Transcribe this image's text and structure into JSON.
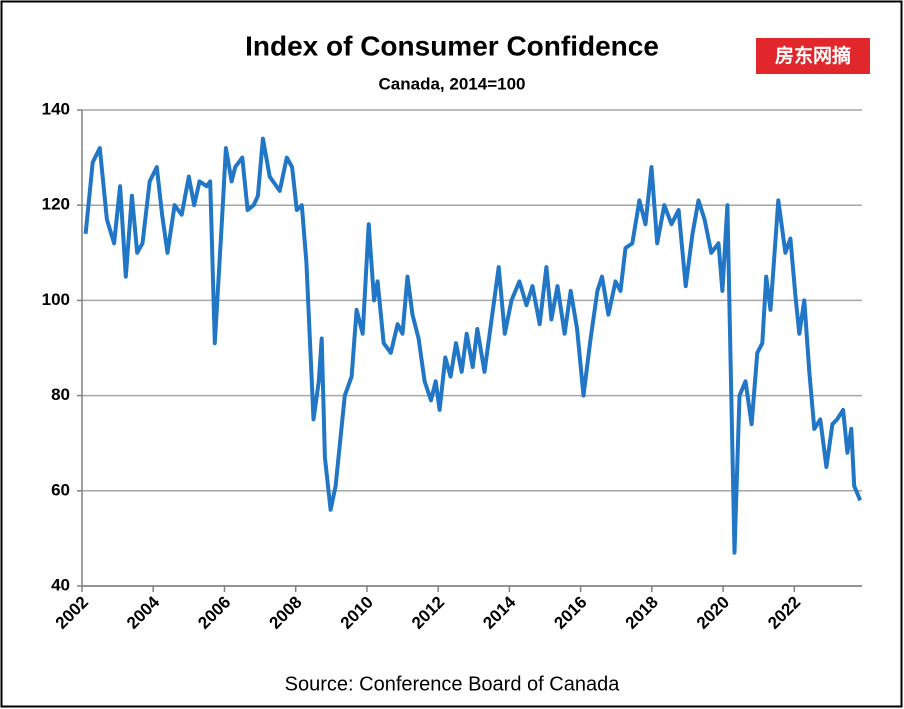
{
  "chart_data": {
    "type": "line",
    "title": "Index of Consumer Confidence",
    "subtitle": "Canada, 2014=100",
    "source": "Source: Conference Board of Canada",
    "watermark": "房东网摘",
    "color": "#2176c5",
    "grid": true,
    "xlim": [
      2002,
      2023.9
    ],
    "xticks": [
      2002,
      2004,
      2006,
      2008,
      2010,
      2012,
      2014,
      2016,
      2018,
      2020,
      2022
    ],
    "ylim": [
      40,
      140
    ],
    "yticks": [
      40,
      60,
      80,
      100,
      120,
      140
    ],
    "x": [
      2002.1,
      2002.3,
      2002.5,
      2002.7,
      2002.9,
      2003.07,
      2003.23,
      2003.4,
      2003.55,
      2003.7,
      2003.9,
      2004.1,
      2004.25,
      2004.4,
      2004.6,
      2004.8,
      2005.0,
      2005.15,
      2005.3,
      2005.5,
      2005.6,
      2005.73,
      2005.93,
      2006.04,
      2006.2,
      2006.3,
      2006.5,
      2006.65,
      2006.82,
      2006.94,
      2007.08,
      2007.27,
      2007.55,
      2007.75,
      2007.9,
      2008.03,
      2008.17,
      2008.3,
      2008.5,
      2008.65,
      2008.73,
      2008.82,
      2008.98,
      2009.12,
      2009.38,
      2009.57,
      2009.71,
      2009.88,
      2010.05,
      2010.2,
      2010.3,
      2010.47,
      2010.67,
      2010.86,
      2011.0,
      2011.14,
      2011.28,
      2011.45,
      2011.62,
      2011.8,
      2011.93,
      2012.04,
      2012.2,
      2012.35,
      2012.5,
      2012.66,
      2012.8,
      2012.97,
      2013.1,
      2013.3,
      2013.5,
      2013.7,
      2013.87,
      2014.06,
      2014.28,
      2014.48,
      2014.65,
      2014.85,
      2015.04,
      2015.18,
      2015.35,
      2015.55,
      2015.72,
      2015.9,
      2016.08,
      2016.28,
      2016.47,
      2016.6,
      2016.78,
      2016.98,
      2017.12,
      2017.26,
      2017.45,
      2017.65,
      2017.82,
      2017.99,
      2018.15,
      2018.35,
      2018.55,
      2018.75,
      2018.95,
      2019.14,
      2019.31,
      2019.48,
      2019.67,
      2019.87,
      2019.98,
      2020.12,
      2020.32,
      2020.46,
      2020.63,
      2020.8,
      2020.96,
      2021.1,
      2021.21,
      2021.33,
      2021.55,
      2021.75,
      2021.89,
      2022.03,
      2022.14,
      2022.28,
      2022.42,
      2022.56,
      2022.73,
      2022.9,
      2023.07,
      2023.2,
      2023.37,
      2023.49,
      2023.6,
      2023.68,
      2023.85
    ],
    "values": [
      114,
      129,
      132,
      117,
      112,
      124,
      105,
      122,
      110,
      112,
      125,
      128,
      118,
      110,
      120,
      118,
      126,
      120,
      125,
      124,
      125,
      91,
      117,
      132,
      125,
      128,
      130,
      119,
      120,
      122,
      134,
      126,
      123,
      130,
      128,
      119,
      120,
      108,
      75,
      83,
      92,
      67,
      56,
      61,
      80,
      84,
      98,
      93,
      116,
      100,
      104,
      91,
      89,
      95,
      93,
      105,
      97,
      92,
      83,
      79,
      83,
      77,
      88,
      84,
      91,
      85,
      93,
      86,
      94,
      85,
      96,
      107,
      93,
      100,
      104,
      99,
      103,
      95,
      107,
      96,
      103,
      93,
      102,
      94,
      80,
      92,
      102,
      105,
      97,
      104,
      102,
      111,
      112,
      121,
      116,
      128,
      112,
      120,
      116,
      119,
      103,
      114,
      121,
      117,
      110,
      112,
      102,
      120,
      47,
      80,
      83,
      74,
      89,
      91,
      105,
      98,
      121,
      110,
      113,
      101,
      93,
      100,
      85,
      73,
      75,
      65,
      74,
      75,
      77,
      68,
      73,
      61,
      58
    ]
  }
}
